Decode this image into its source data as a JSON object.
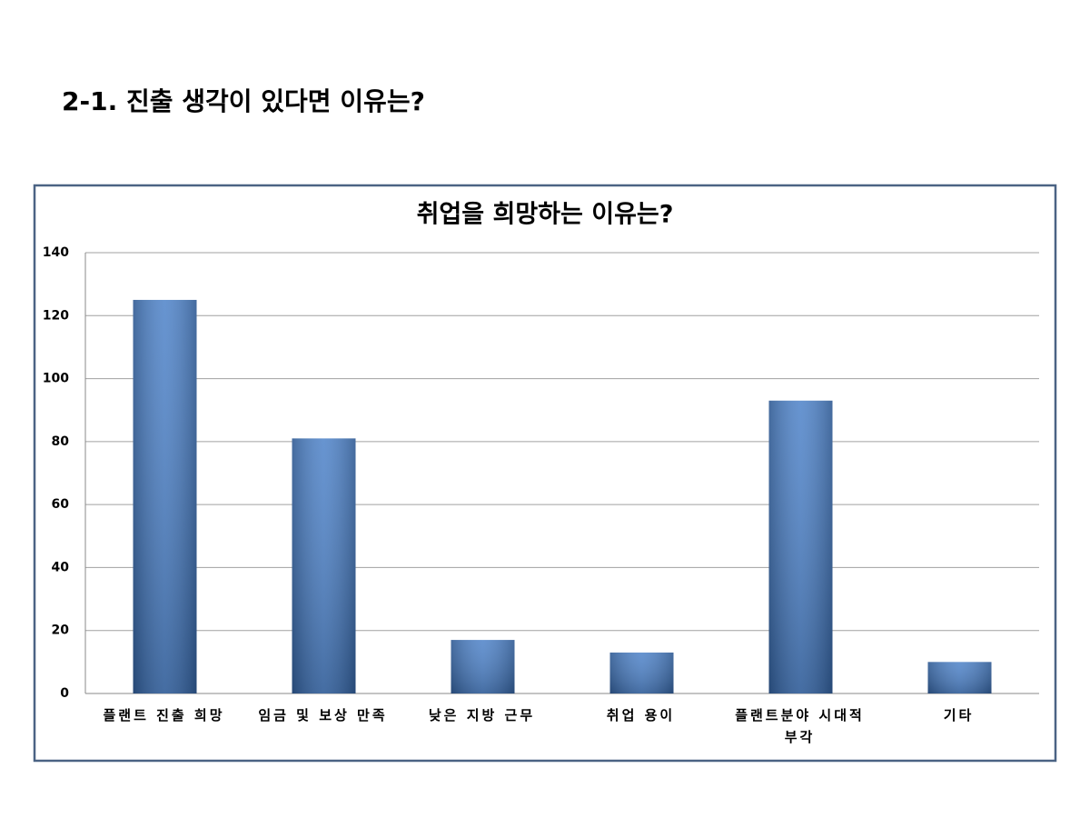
{
  "heading": "2-1. 진출 생각이 있다면 이유는?",
  "chart_data": {
    "type": "bar",
    "title": "취업을 희망하는 이유는?",
    "categories": [
      "플랜트 진출 희망",
      "임금 및 보상 만족",
      "낮은 지방 근무",
      "취업 용이",
      "플랜트분야 시대적 부각",
      "기타"
    ],
    "values": [
      125,
      81,
      17,
      13,
      93,
      10
    ],
    "color": "#3f78c4",
    "ylim": [
      0,
      140
    ],
    "yticks": [
      0,
      20,
      40,
      60,
      80,
      100,
      120,
      140
    ],
    "grid": true
  }
}
